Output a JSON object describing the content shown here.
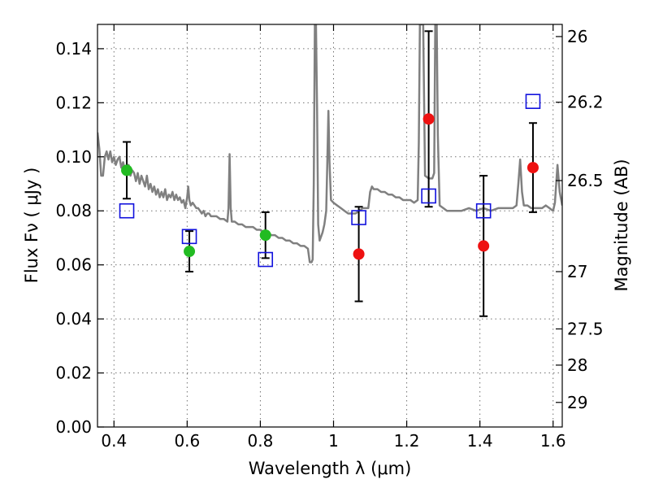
{
  "chart_data": {
    "type": "scatter",
    "xlabel": "Wavelength  λ (μm)",
    "ylabel": "Flux  Fν  ( μJy )",
    "y2label": "Magnitude (AB)",
    "xlim": [
      0.355,
      1.625
    ],
    "ylim": [
      0.0,
      0.149
    ],
    "grid": true,
    "x_ticks": [
      0.4,
      0.6,
      0.8,
      1.0,
      1.2,
      1.4,
      1.6
    ],
    "x_tick_labels": [
      "0.4",
      "0.6",
      "0.8",
      "1",
      "1.2",
      "1.4",
      "1.6"
    ],
    "y_ticks": [
      0.0,
      0.02,
      0.04,
      0.06,
      0.08,
      0.1,
      0.12,
      0.14
    ],
    "y_tick_labels": [
      "0.00",
      "0.02",
      "0.04",
      "0.06",
      "0.08",
      "0.10",
      "0.12",
      "0.14"
    ],
    "y2_ticks": [
      {
        "label": "26",
        "flux": 0.1445
      },
      {
        "label": "26.2",
        "flux": 0.1202
      },
      {
        "label": "26.5",
        "flux": 0.0912
      },
      {
        "label": "27",
        "flux": 0.0575
      },
      {
        "label": "27.5",
        "flux": 0.0363
      },
      {
        "label": "28",
        "flux": 0.0229
      },
      {
        "label": "29",
        "flux": 0.0091
      }
    ],
    "colors": {
      "model": "#808080",
      "optical_points": "#22bb22",
      "nir_points": "#ee1111",
      "model_boxes": "#1111dd",
      "errorbar": "#000000"
    },
    "series": [
      {
        "kind": "model-spectrum",
        "points": [
          [
            0.355,
            0.109
          ],
          [
            0.36,
            0.103
          ],
          [
            0.365,
            0.093
          ],
          [
            0.37,
            0.093
          ],
          [
            0.375,
            0.1
          ],
          [
            0.38,
            0.102
          ],
          [
            0.385,
            0.099
          ],
          [
            0.39,
            0.102
          ],
          [
            0.395,
            0.098
          ],
          [
            0.4,
            0.1
          ],
          [
            0.405,
            0.097
          ],
          [
            0.41,
            0.099
          ],
          [
            0.415,
            0.1
          ],
          [
            0.42,
            0.096
          ],
          [
            0.425,
            0.098
          ],
          [
            0.43,
            0.095
          ],
          [
            0.435,
            0.096
          ],
          [
            0.44,
            0.097
          ],
          [
            0.445,
            0.093
          ],
          [
            0.45,
            0.095
          ],
          [
            0.455,
            0.094
          ],
          [
            0.46,
            0.091
          ],
          [
            0.465,
            0.094
          ],
          [
            0.47,
            0.09
          ],
          [
            0.475,
            0.093
          ],
          [
            0.48,
            0.091
          ],
          [
            0.485,
            0.089
          ],
          [
            0.49,
            0.093
          ],
          [
            0.495,
            0.088
          ],
          [
            0.5,
            0.09
          ],
          [
            0.505,
            0.087
          ],
          [
            0.51,
            0.089
          ],
          [
            0.515,
            0.086
          ],
          [
            0.52,
            0.088
          ],
          [
            0.525,
            0.085
          ],
          [
            0.53,
            0.087
          ],
          [
            0.535,
            0.085
          ],
          [
            0.54,
            0.088
          ],
          [
            0.545,
            0.084
          ],
          [
            0.55,
            0.086
          ],
          [
            0.555,
            0.085
          ],
          [
            0.56,
            0.087
          ],
          [
            0.565,
            0.084
          ],
          [
            0.57,
            0.086
          ],
          [
            0.575,
            0.084
          ],
          [
            0.58,
            0.085
          ],
          [
            0.585,
            0.083
          ],
          [
            0.59,
            0.084
          ],
          [
            0.595,
            0.081
          ],
          [
            0.6,
            0.085
          ],
          [
            0.603,
            0.089
          ],
          [
            0.606,
            0.084
          ],
          [
            0.61,
            0.082
          ],
          [
            0.615,
            0.083
          ],
          [
            0.62,
            0.082
          ],
          [
            0.625,
            0.081
          ],
          [
            0.63,
            0.081
          ],
          [
            0.635,
            0.08
          ],
          [
            0.64,
            0.079
          ],
          [
            0.645,
            0.08
          ],
          [
            0.65,
            0.078
          ],
          [
            0.655,
            0.079
          ],
          [
            0.66,
            0.079
          ],
          [
            0.665,
            0.078
          ],
          [
            0.67,
            0.078
          ],
          [
            0.68,
            0.078
          ],
          [
            0.69,
            0.077
          ],
          [
            0.7,
            0.077
          ],
          [
            0.71,
            0.076
          ],
          [
            0.713,
            0.081
          ],
          [
            0.716,
            0.101
          ],
          [
            0.719,
            0.081
          ],
          [
            0.722,
            0.076
          ],
          [
            0.73,
            0.076
          ],
          [
            0.74,
            0.075
          ],
          [
            0.75,
            0.075
          ],
          [
            0.76,
            0.074
          ],
          [
            0.77,
            0.074
          ],
          [
            0.78,
            0.074
          ],
          [
            0.79,
            0.073
          ],
          [
            0.8,
            0.073
          ],
          [
            0.81,
            0.072
          ],
          [
            0.82,
            0.072
          ],
          [
            0.83,
            0.071
          ],
          [
            0.84,
            0.071
          ],
          [
            0.85,
            0.07
          ],
          [
            0.86,
            0.07
          ],
          [
            0.87,
            0.069
          ],
          [
            0.88,
            0.069
          ],
          [
            0.89,
            0.068
          ],
          [
            0.9,
            0.068
          ],
          [
            0.91,
            0.067
          ],
          [
            0.92,
            0.067
          ],
          [
            0.93,
            0.066
          ],
          [
            0.935,
            0.061
          ],
          [
            0.94,
            0.061
          ],
          [
            0.943,
            0.062
          ],
          [
            0.946,
            0.09
          ],
          [
            0.949,
            0.149
          ],
          [
            0.952,
            0.149
          ],
          [
            0.955,
            0.118
          ],
          [
            0.958,
            0.075
          ],
          [
            0.962,
            0.069
          ],
          [
            0.97,
            0.072
          ],
          [
            0.975,
            0.075
          ],
          [
            0.98,
            0.08
          ],
          [
            0.983,
            0.098
          ],
          [
            0.986,
            0.117
          ],
          [
            0.989,
            0.098
          ],
          [
            0.993,
            0.084
          ],
          [
            1.0,
            0.083
          ],
          [
            1.01,
            0.082
          ],
          [
            1.02,
            0.081
          ],
          [
            1.03,
            0.08
          ],
          [
            1.04,
            0.079
          ],
          [
            1.05,
            0.079
          ],
          [
            1.06,
            0.079
          ],
          [
            1.07,
            0.08
          ],
          [
            1.08,
            0.081
          ],
          [
            1.09,
            0.081
          ],
          [
            1.095,
            0.081
          ],
          [
            1.1,
            0.087
          ],
          [
            1.105,
            0.089
          ],
          [
            1.11,
            0.088
          ],
          [
            1.12,
            0.088
          ],
          [
            1.13,
            0.087
          ],
          [
            1.14,
            0.087
          ],
          [
            1.15,
            0.086
          ],
          [
            1.16,
            0.086
          ],
          [
            1.17,
            0.085
          ],
          [
            1.18,
            0.085
          ],
          [
            1.19,
            0.084
          ],
          [
            1.2,
            0.084
          ],
          [
            1.21,
            0.084
          ],
          [
            1.22,
            0.083
          ],
          [
            1.23,
            0.084
          ],
          [
            1.233,
            0.105
          ],
          [
            1.236,
            0.149
          ],
          [
            1.24,
            0.149
          ],
          [
            1.245,
            0.149
          ],
          [
            1.25,
            0.093
          ],
          [
            1.26,
            0.092
          ],
          [
            1.27,
            0.092
          ],
          [
            1.275,
            0.094
          ],
          [
            1.278,
            0.149
          ],
          [
            1.282,
            0.149
          ],
          [
            1.285,
            0.108
          ],
          [
            1.29,
            0.082
          ],
          [
            1.3,
            0.081
          ],
          [
            1.31,
            0.08
          ],
          [
            1.33,
            0.08
          ],
          [
            1.35,
            0.08
          ],
          [
            1.37,
            0.081
          ],
          [
            1.39,
            0.08
          ],
          [
            1.41,
            0.081
          ],
          [
            1.43,
            0.08
          ],
          [
            1.45,
            0.081
          ],
          [
            1.47,
            0.081
          ],
          [
            1.49,
            0.081
          ],
          [
            1.5,
            0.082
          ],
          [
            1.505,
            0.09
          ],
          [
            1.51,
            0.099
          ],
          [
            1.515,
            0.087
          ],
          [
            1.52,
            0.082
          ],
          [
            1.53,
            0.082
          ],
          [
            1.54,
            0.081
          ],
          [
            1.55,
            0.081
          ],
          [
            1.56,
            0.081
          ],
          [
            1.57,
            0.081
          ],
          [
            1.58,
            0.082
          ],
          [
            1.59,
            0.081
          ],
          [
            1.6,
            0.08
          ],
          [
            1.605,
            0.083
          ],
          [
            1.612,
            0.097
          ],
          [
            1.618,
            0.087
          ],
          [
            1.625,
            0.082
          ]
        ]
      },
      {
        "kind": "observed-optical",
        "points": [
          {
            "x": 0.435,
            "y": 0.095,
            "err": 0.0105
          },
          {
            "x": 0.606,
            "y": 0.065,
            "err": 0.0075
          },
          {
            "x": 0.814,
            "y": 0.071,
            "err": 0.0085
          }
        ]
      },
      {
        "kind": "observed-nir",
        "points": [
          {
            "x": 1.069,
            "y": 0.064,
            "err": 0.0175
          },
          {
            "x": 1.26,
            "y": 0.114,
            "err": 0.0325
          },
          {
            "x": 1.41,
            "y": 0.067,
            "err": 0.026
          },
          {
            "x": 1.545,
            "y": 0.096,
            "err": 0.0165
          }
        ]
      },
      {
        "kind": "model-synthetic-photometry",
        "points": [
          {
            "x": 0.435,
            "y": 0.08
          },
          {
            "x": 0.606,
            "y": 0.0705
          },
          {
            "x": 0.814,
            "y": 0.062
          },
          {
            "x": 1.069,
            "y": 0.0775
          },
          {
            "x": 1.26,
            "y": 0.0855
          },
          {
            "x": 1.41,
            "y": 0.08
          },
          {
            "x": 1.545,
            "y": 0.1205
          }
        ]
      }
    ]
  }
}
